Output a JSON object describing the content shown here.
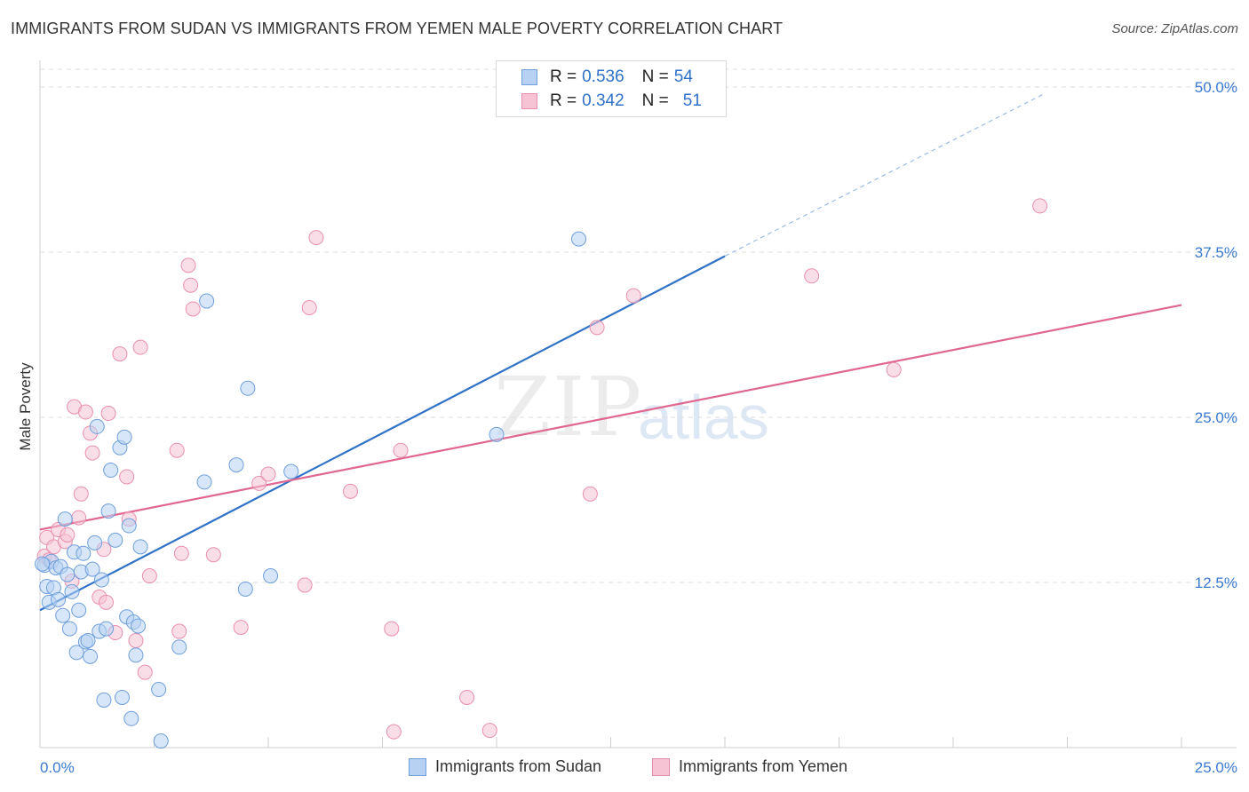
{
  "title": "IMMIGRANTS FROM SUDAN VS IMMIGRANTS FROM YEMEN MALE POVERTY CORRELATION CHART",
  "source": "Source: ZipAtlas.com",
  "watermark": {
    "zip": "ZIP",
    "atlas": "atlas"
  },
  "legend": {
    "sudan": {
      "r_label": "R =",
      "r_value": "0.536",
      "n_label": "N =",
      "n_value": "54"
    },
    "yemen": {
      "r_label": "R =",
      "r_value": "0.342",
      "n_label": "N =",
      "n_value": "51"
    }
  },
  "colors": {
    "sudan_fill": "#b7d1f3",
    "sudan_stroke": "#6f9fdc",
    "sudan_line": "#2f72c8",
    "yemen_fill": "#f6c3d4",
    "yemen_stroke": "#e98fae",
    "yemen_line": "#e0678f",
    "grid": "#dedede",
    "tick_text": "#3a7ad0"
  },
  "chart_data": {
    "type": "scatter",
    "title": "IMMIGRANTS FROM SUDAN VS IMMIGRANTS FROM YEMEN MALE POVERTY CORRELATION CHART",
    "xlabel": "",
    "ylabel": "Male Poverty",
    "xlim": [
      0,
      25
    ],
    "ylim": [
      0,
      50
    ],
    "x_tick_labels": [
      "0.0%",
      "25.0%"
    ],
    "y_ticks": [
      12.5,
      25.0,
      37.5,
      50.0
    ],
    "y_tick_labels": [
      "12.5%",
      "25.0%",
      "37.5%",
      "50.0%"
    ],
    "series": [
      {
        "name": "Immigrants from Sudan",
        "trend": {
          "x0": 0,
          "y0": 10.4,
          "x1": 15,
          "y1": 37.2,
          "dash_to_x": 22,
          "dash_to_y": 49.5
        },
        "points": [
          [
            0.1,
            13.8
          ],
          [
            0.15,
            12.2
          ],
          [
            0.2,
            11.0
          ],
          [
            0.25,
            14.1
          ],
          [
            0.3,
            12.1
          ],
          [
            0.35,
            13.6
          ],
          [
            0.4,
            11.2
          ],
          [
            0.45,
            13.7
          ],
          [
            0.5,
            10.0
          ],
          [
            0.55,
            17.3
          ],
          [
            0.6,
            13.1
          ],
          [
            0.65,
            9.0
          ],
          [
            0.7,
            11.8
          ],
          [
            0.75,
            14.8
          ],
          [
            0.8,
            7.2
          ],
          [
            0.85,
            10.4
          ],
          [
            0.9,
            13.3
          ],
          [
            0.95,
            14.7
          ],
          [
            1.0,
            8.0
          ],
          [
            1.05,
            8.1
          ],
          [
            1.1,
            6.9
          ],
          [
            1.15,
            13.5
          ],
          [
            1.2,
            15.5
          ],
          [
            1.25,
            24.3
          ],
          [
            1.3,
            8.8
          ],
          [
            1.35,
            12.7
          ],
          [
            1.4,
            3.6
          ],
          [
            1.45,
            9.0
          ],
          [
            1.5,
            17.9
          ],
          [
            1.55,
            21.0
          ],
          [
            1.65,
            15.7
          ],
          [
            1.75,
            22.7
          ],
          [
            1.8,
            3.8
          ],
          [
            1.85,
            23.5
          ],
          [
            1.9,
            9.9
          ],
          [
            1.95,
            16.8
          ],
          [
            2.0,
            2.2
          ],
          [
            2.05,
            9.5
          ],
          [
            2.1,
            7.0
          ],
          [
            2.15,
            9.2
          ],
          [
            2.2,
            15.2
          ],
          [
            2.6,
            4.4
          ],
          [
            2.65,
            0.5
          ],
          [
            3.05,
            7.6
          ],
          [
            3.6,
            20.1
          ],
          [
            3.65,
            33.8
          ],
          [
            4.3,
            21.4
          ],
          [
            4.55,
            27.2
          ],
          [
            4.5,
            12.0
          ],
          [
            5.05,
            13.0
          ],
          [
            5.5,
            20.9
          ],
          [
            10.0,
            23.7
          ],
          [
            11.8,
            38.5
          ],
          [
            0.05,
            13.9
          ]
        ]
      },
      {
        "name": "Immigrants from Yemen",
        "trend": {
          "x0": 0,
          "y0": 16.5,
          "x1": 25,
          "y1": 33.5
        },
        "points": [
          [
            0.1,
            14.5
          ],
          [
            0.15,
            15.9
          ],
          [
            0.2,
            14.2
          ],
          [
            0.3,
            15.2
          ],
          [
            0.4,
            16.5
          ],
          [
            0.55,
            15.6
          ],
          [
            0.6,
            16.1
          ],
          [
            0.7,
            12.6
          ],
          [
            0.75,
            25.8
          ],
          [
            0.85,
            17.4
          ],
          [
            0.9,
            19.2
          ],
          [
            1.0,
            25.4
          ],
          [
            1.1,
            23.8
          ],
          [
            1.15,
            22.3
          ],
          [
            1.3,
            11.4
          ],
          [
            1.4,
            15.0
          ],
          [
            1.45,
            11.0
          ],
          [
            1.5,
            25.3
          ],
          [
            1.65,
            8.7
          ],
          [
            1.75,
            29.8
          ],
          [
            1.9,
            20.5
          ],
          [
            1.95,
            17.3
          ],
          [
            2.1,
            8.1
          ],
          [
            2.2,
            30.3
          ],
          [
            2.3,
            5.7
          ],
          [
            2.4,
            13.0
          ],
          [
            3.0,
            22.5
          ],
          [
            3.05,
            8.8
          ],
          [
            3.1,
            14.7
          ],
          [
            3.25,
            36.5
          ],
          [
            3.3,
            35.0
          ],
          [
            3.35,
            33.2
          ],
          [
            3.8,
            14.6
          ],
          [
            4.4,
            9.1
          ],
          [
            4.8,
            20.0
          ],
          [
            5.0,
            20.7
          ],
          [
            5.8,
            12.3
          ],
          [
            5.9,
            33.3
          ],
          [
            6.05,
            38.6
          ],
          [
            6.8,
            19.4
          ],
          [
            7.7,
            9.0
          ],
          [
            7.75,
            1.2
          ],
          [
            7.9,
            22.5
          ],
          [
            9.35,
            3.8
          ],
          [
            9.85,
            1.3
          ],
          [
            12.05,
            19.2
          ],
          [
            12.2,
            31.8
          ],
          [
            13.0,
            34.2
          ],
          [
            16.9,
            35.7
          ],
          [
            18.7,
            28.6
          ],
          [
            21.9,
            41.0
          ]
        ]
      }
    ]
  },
  "bottom_legend": {
    "sudan": "Immigrants from Sudan",
    "yemen": "Immigrants from Yemen"
  }
}
